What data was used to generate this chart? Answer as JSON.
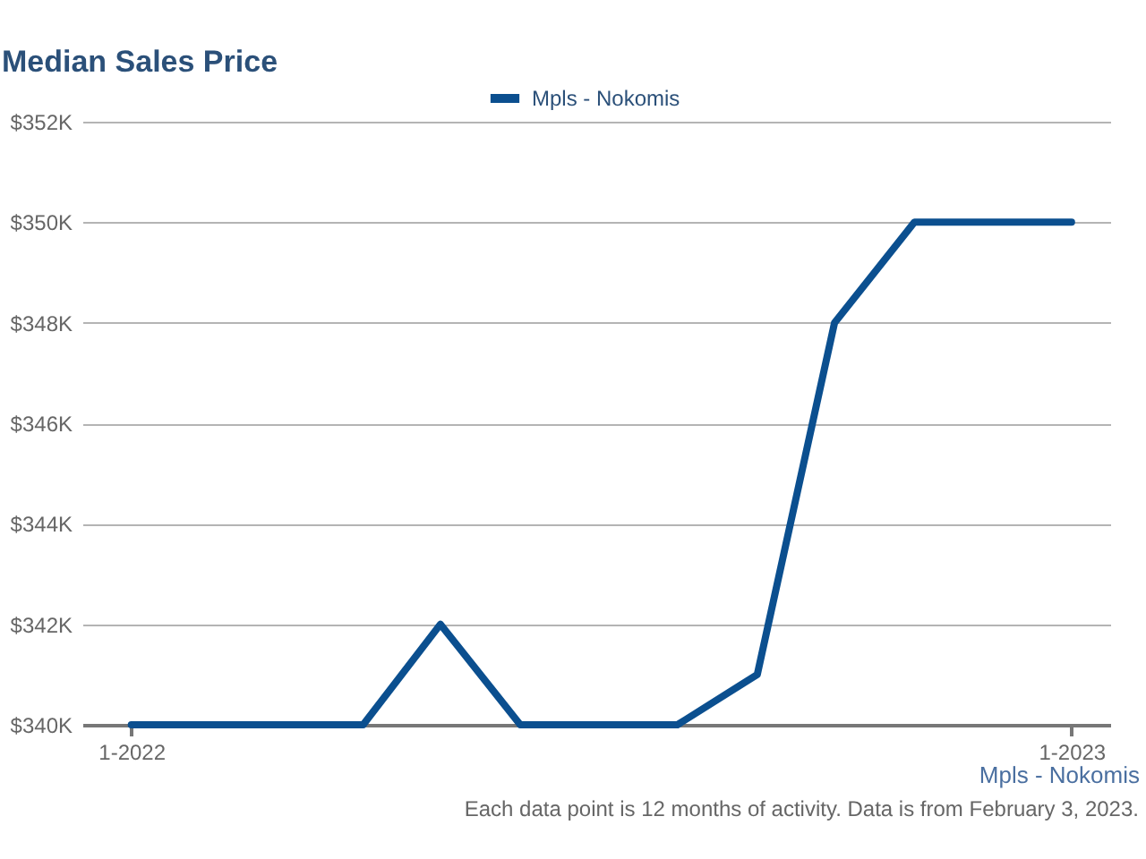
{
  "chart_data": {
    "type": "line",
    "title": "Median Sales Price",
    "xlabel": "Mpls - Nokomis",
    "annotations": [
      "Each data point is 12 months of activity. Data is from February 3, 2023."
    ],
    "x": [
      "2022-01",
      "2022-02",
      "2022-03",
      "2022-04",
      "2022-05",
      "2022-06",
      "2022-07",
      "2022-08",
      "2022-09",
      "2022-10",
      "2022-11",
      "2022-12",
      "2023-01"
    ],
    "series": [
      {
        "name": "Mpls - Nokomis",
        "color": "#0b4f8f",
        "values": [
          340000,
          340000,
          340000,
          340000,
          342000,
          340000,
          340000,
          340000,
          341000,
          348000,
          350000,
          350000,
          350000
        ]
      }
    ],
    "xlim": [
      "2021-12-13",
      "2023-01-16"
    ],
    "xticks": [
      {
        "value": "2022-01",
        "label": "1-2022"
      },
      {
        "value": "2023-01",
        "label": "1-2023"
      }
    ],
    "ylim": [
      340000,
      352000
    ],
    "yticks": [
      {
        "value": 340000,
        "label": "$340K"
      },
      {
        "value": 342000,
        "label": "$342K"
      },
      {
        "value": 344000,
        "label": "$344K"
      },
      {
        "value": 346000,
        "label": "$346K"
      },
      {
        "value": 348000,
        "label": "$348K"
      },
      {
        "value": 350000,
        "label": "$350K"
      },
      {
        "value": 352000,
        "label": "$352K"
      }
    ],
    "grid": "y",
    "legend": "top",
    "line_style": "solid"
  }
}
